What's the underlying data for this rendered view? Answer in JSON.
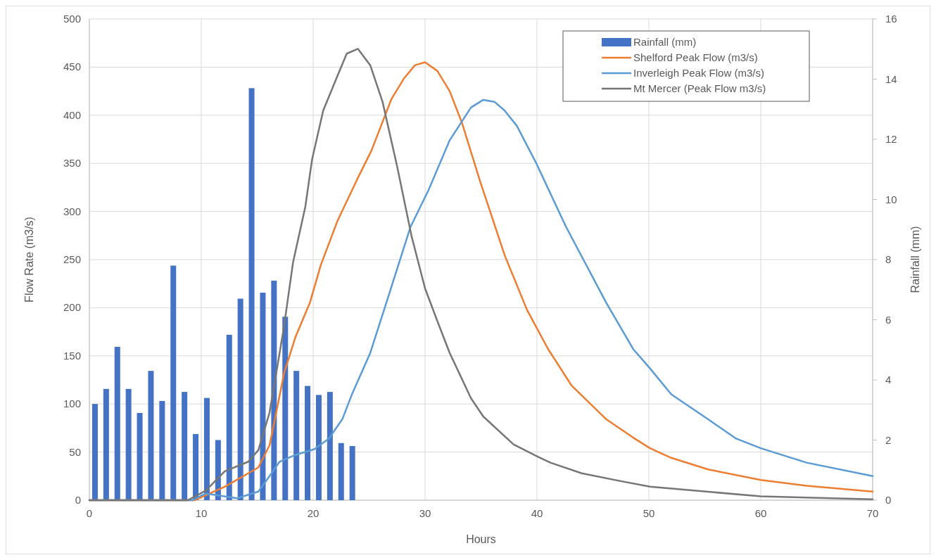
{
  "chart_data": {
    "type": "line",
    "xlabel": "Hours",
    "ylabel": "Flow Rate (m3/s)",
    "y2label": "Rainfall (mm)",
    "xlim": [
      0,
      70
    ],
    "xticks": [
      0,
      10,
      20,
      30,
      40,
      50,
      60,
      70
    ],
    "ylim": [
      0,
      500
    ],
    "yticks": [
      0,
      50,
      100,
      150,
      200,
      250,
      300,
      350,
      400,
      450,
      500
    ],
    "y2lim": [
      0,
      16
    ],
    "y2ticks": [
      0,
      2,
      4,
      6,
      8,
      10,
      12,
      14,
      16
    ],
    "grid": true,
    "legend": "top right",
    "series": [
      {
        "name": "Rainfall (mm)",
        "type": "bar",
        "axis": "y2",
        "color": "#4472c4",
        "x": [
          0.5,
          1.5,
          2.5,
          3.5,
          4.5,
          5.5,
          6.5,
          7.5,
          8.5,
          9.5,
          10.5,
          11.5,
          12.5,
          13.5,
          14.5,
          15.5,
          16.5,
          17.5,
          18.5,
          19.5,
          20.5,
          21.5,
          22.5,
          23.5
        ],
        "values": [
          3.2,
          3.7,
          5.1,
          3.7,
          2.9,
          4.3,
          3.3,
          7.8,
          3.6,
          2.2,
          3.4,
          2.0,
          5.5,
          6.7,
          13.7,
          6.9,
          7.3,
          6.1,
          4.3,
          3.8,
          3.5,
          3.6,
          1.9,
          1.8
        ]
      },
      {
        "name": "Shelford Peak Flow (m3/s)",
        "color": "#ed7d31",
        "x": [
          0,
          9.4,
          12.1,
          15.1,
          16.1,
          16.7,
          17.4,
          18.4,
          19.7,
          20.7,
          22.2,
          24,
          25.2,
          27,
          28.1,
          29.1,
          30,
          31.1,
          32.2,
          33.3,
          34.9,
          37.1,
          39.1,
          41,
          43.1,
          46.2,
          48.6,
          50.1,
          52,
          55.3,
          60,
          64.1,
          70
        ],
        "values": [
          0,
          0,
          14,
          34,
          57,
          91,
          132,
          169,
          205,
          245,
          291,
          335,
          363,
          417,
          438,
          452,
          455,
          446,
          425,
          392,
          332,
          255,
          198,
          157,
          119,
          84,
          65,
          54,
          44,
          32,
          21,
          15,
          9
        ]
      },
      {
        "name": "Inverleigh Peak Flow (m3/s)",
        "color": "#5b9bd5",
        "x": [
          0,
          9.2,
          10.4,
          13.2,
          15.1,
          16.1,
          17,
          18.4,
          20.1,
          21.4,
          22.6,
          23.5,
          25.1,
          26.7,
          28.7,
          30.3,
          32.2,
          34.1,
          35.2,
          36.2,
          37.1,
          38.2,
          39.9,
          42.6,
          46.2,
          48.6,
          50.1,
          52,
          55.3,
          57.8,
          60,
          64.1,
          70
        ],
        "values": [
          0,
          0,
          7,
          2,
          9,
          25,
          40,
          47,
          53,
          64,
          84,
          111,
          153,
          211,
          284,
          322,
          374,
          408,
          416,
          414,
          405,
          389,
          351,
          284,
          205,
          157,
          137,
          110,
          84,
          64,
          54,
          39,
          25
        ]
      },
      {
        "name": "Mt Mercer (Peak Flow m3/s)",
        "color": "#767676",
        "x": [
          0,
          8.8,
          10.4,
          12.1,
          14.2,
          15.1,
          16.1,
          16.7,
          17.4,
          18.2,
          19.3,
          19.9,
          20.9,
          22.1,
          23,
          24,
          25.1,
          26.2,
          27.5,
          28.8,
          30,
          31.1,
          32.2,
          34.1,
          35.2,
          37.9,
          40.1,
          41.2,
          44,
          47.4,
          50.1,
          60,
          70
        ],
        "values": [
          0,
          0,
          10,
          30,
          40,
          52,
          91,
          132,
          181,
          247,
          305,
          354,
          405,
          439,
          464,
          469,
          452,
          414,
          347,
          274,
          220,
          186,
          153,
          106,
          87,
          58,
          45,
          39,
          28,
          20,
          14,
          4,
          1
        ]
      }
    ]
  }
}
